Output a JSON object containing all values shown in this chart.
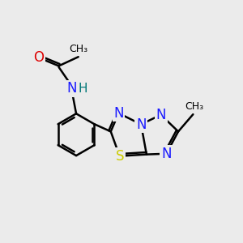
{
  "background_color": "#ebebeb",
  "atom_colors": {
    "C": "#000000",
    "N": "#1a1aff",
    "S": "#cccc00",
    "O": "#dd0000",
    "H": "#007777"
  },
  "bond_color": "#000000",
  "bond_width": 1.8,
  "font_size": 12,
  "small_font_size": 11
}
